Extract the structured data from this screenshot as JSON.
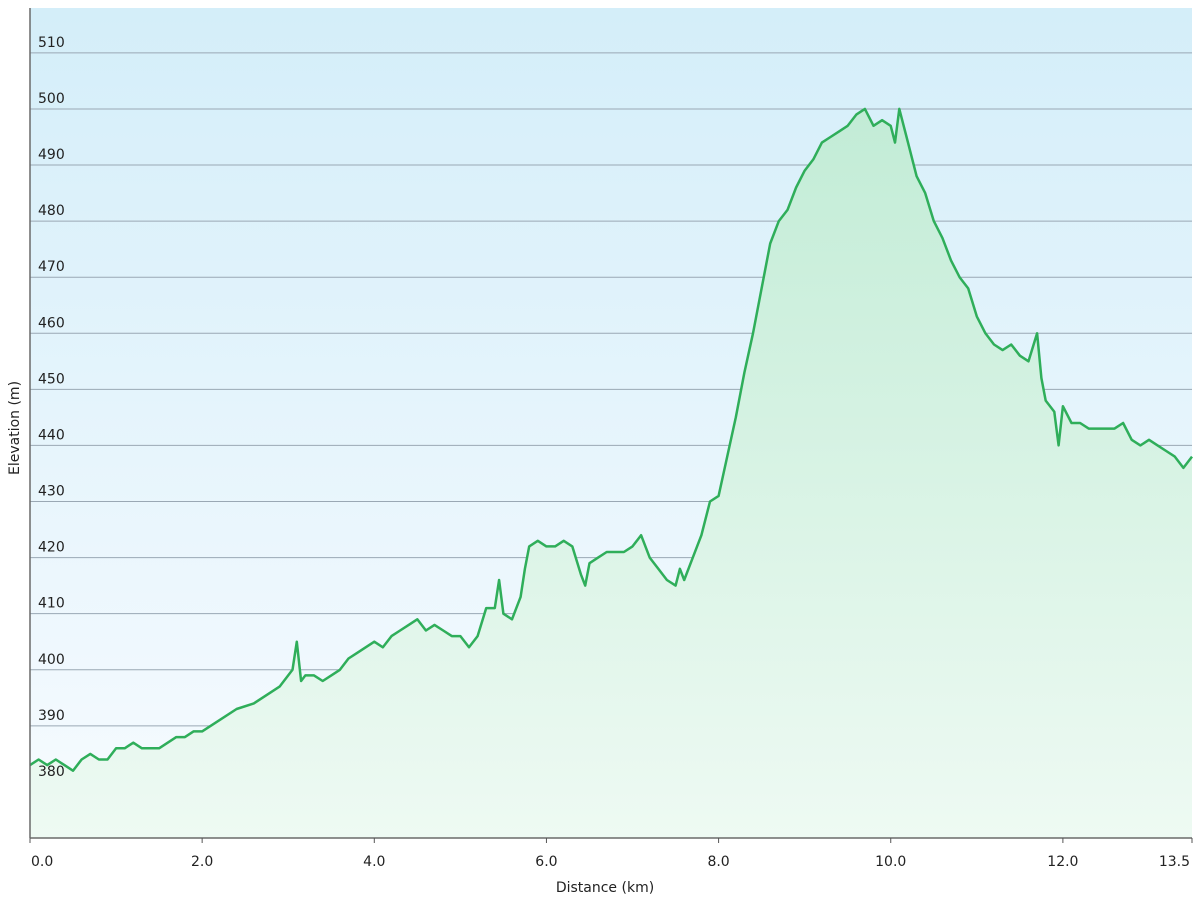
{
  "chart_data": {
    "type": "area",
    "title": "",
    "xlabel": "Distance  (km)",
    "ylabel": "Elevation (m)",
    "xlim": [
      0,
      13.5
    ],
    "ylim": [
      370,
      518
    ],
    "x_ticks": [
      "0.0",
      "2.0",
      "4.0",
      "6.0",
      "8.0",
      "10.0",
      "12.0",
      "13.5"
    ],
    "x_tick_values": [
      0,
      2,
      4,
      6,
      8,
      10,
      12,
      13.5
    ],
    "y_ticks": [
      "380",
      "390",
      "400",
      "410",
      "420",
      "430",
      "440",
      "450",
      "460",
      "470",
      "480",
      "490",
      "500",
      "510"
    ],
    "y_tick_values": [
      380,
      390,
      400,
      410,
      420,
      430,
      440,
      450,
      460,
      470,
      480,
      490,
      500,
      510
    ],
    "grid": "horizontal",
    "colors": {
      "line": "#2fae5a",
      "fill_top": "#c2ecd6",
      "fill_bottom": "#eefaf3",
      "bg_top": "#d4eef9",
      "bg_bottom": "#f7fbff"
    },
    "series": [
      {
        "x": [
          0,
          0.1,
          0.2,
          0.3,
          0.4,
          0.5,
          0.6,
          0.7,
          0.8,
          0.9,
          1.0,
          1.1,
          1.2,
          1.3,
          1.4,
          1.5,
          1.6,
          1.7,
          1.8,
          1.9,
          2.0,
          2.2,
          2.4,
          2.6,
          2.8,
          2.9,
          3.0,
          3.05,
          3.1,
          3.15,
          3.2,
          3.3,
          3.4,
          3.5,
          3.6,
          3.7,
          3.8,
          3.9,
          4.0,
          4.1,
          4.2,
          4.3,
          4.4,
          4.5,
          4.6,
          4.7,
          4.8,
          4.9,
          5.0,
          5.1,
          5.2,
          5.3,
          5.4,
          5.45,
          5.5,
          5.6,
          5.7,
          5.75,
          5.8,
          5.9,
          6.0,
          6.1,
          6.2,
          6.3,
          6.4,
          6.45,
          6.5,
          6.6,
          6.7,
          6.8,
          6.9,
          7.0,
          7.1,
          7.2,
          7.3,
          7.4,
          7.5,
          7.55,
          7.6,
          7.7,
          7.8,
          7.9,
          8.0,
          8.1,
          8.2,
          8.3,
          8.4,
          8.5,
          8.6,
          8.7,
          8.8,
          8.9,
          9.0,
          9.1,
          9.2,
          9.3,
          9.4,
          9.5,
          9.6,
          9.7,
          9.8,
          9.9,
          10.0,
          10.05,
          10.1,
          10.2,
          10.3,
          10.4,
          10.5,
          10.6,
          10.7,
          10.8,
          10.9,
          11.0,
          11.1,
          11.2,
          11.3,
          11.4,
          11.5,
          11.6,
          11.7,
          11.75,
          11.8,
          11.9,
          11.95,
          12.0,
          12.1,
          12.2,
          12.3,
          12.4,
          12.5,
          12.6,
          12.7,
          12.8,
          12.9,
          13.0,
          13.1,
          13.2,
          13.3,
          13.4,
          13.5
        ],
        "values": [
          383,
          384,
          383,
          384,
          383,
          382,
          384,
          385,
          384,
          384,
          386,
          386,
          387,
          386,
          386,
          386,
          387,
          388,
          388,
          389,
          389,
          391,
          393,
          394,
          396,
          397,
          399,
          400,
          405,
          398,
          399,
          399,
          398,
          399,
          400,
          402,
          403,
          404,
          405,
          404,
          406,
          407,
          408,
          409,
          407,
          408,
          407,
          406,
          406,
          404,
          406,
          411,
          411,
          416,
          410,
          409,
          413,
          418,
          422,
          423,
          422,
          422,
          423,
          422,
          417,
          415,
          419,
          420,
          421,
          421,
          421,
          422,
          424,
          420,
          418,
          416,
          415,
          418,
          416,
          420,
          424,
          430,
          431,
          438,
          445,
          453,
          460,
          468,
          476,
          480,
          482,
          486,
          489,
          491,
          494,
          495,
          496,
          497,
          499,
          500,
          497,
          498,
          497,
          494,
          500,
          494,
          488,
          485,
          480,
          477,
          473,
          470,
          468,
          463,
          460,
          458,
          457,
          458,
          456,
          455,
          460,
          452,
          448,
          446,
          440,
          447,
          444,
          444,
          443,
          443,
          443,
          443,
          444,
          441,
          440,
          441,
          440,
          439,
          438,
          436,
          438
        ]
      }
    ]
  }
}
